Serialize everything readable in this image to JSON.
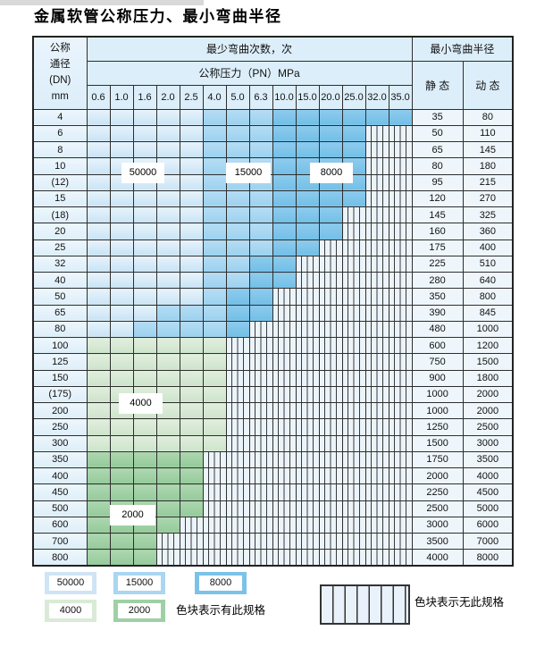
{
  "title": "金属软管公称压力、最小弯曲半径",
  "table": {
    "corner": [
      "公称",
      "通径",
      "(DN)",
      "mm"
    ],
    "bend_header": "最少弯曲次数，次",
    "pressure_header": "公称压力（PN）MPa",
    "radius_header": "最小弯曲半径",
    "static_header": "静 态",
    "dynamic_header": "动 态",
    "pressure_columns": [
      "0.6",
      "1.0",
      "1.6",
      "2.0",
      "2.5",
      "4.0",
      "5.0",
      "6.3",
      "10.0",
      "15.0",
      "20.0",
      "25.0",
      "32.0",
      "35.0"
    ],
    "rows": [
      {
        "dn": "4",
        "static": "35",
        "dynamic": "80",
        "cells": [
          "b1",
          "b1",
          "b1",
          "b1",
          "b1",
          "b2",
          "b2",
          "b2",
          "b3",
          "b3",
          "b3",
          "b3",
          "b3",
          "b3"
        ]
      },
      {
        "dn": "6",
        "static": "50",
        "dynamic": "110",
        "cells": [
          "b1",
          "b1",
          "b1",
          "b1",
          "b1",
          "b2",
          "b2",
          "b2",
          "b3",
          "b3",
          "b3",
          "b3",
          "x",
          "x"
        ]
      },
      {
        "dn": "8",
        "static": "65",
        "dynamic": "145",
        "cells": [
          "b1",
          "b1",
          "b1",
          "b1",
          "b1",
          "b2",
          "b2",
          "b2",
          "b3",
          "b3",
          "b3",
          "b3",
          "x",
          "x"
        ]
      },
      {
        "dn": "10",
        "static": "80",
        "dynamic": "180",
        "cells": [
          "b1",
          "b1",
          "b1",
          "b1",
          "b1",
          "b2",
          "b2",
          "b2",
          "b3",
          "b3",
          "b3",
          "b3",
          "x",
          "x"
        ]
      },
      {
        "dn": "(12)",
        "static": "95",
        "dynamic": "215",
        "cells": [
          "b1",
          "b1",
          "b1",
          "b1",
          "b1",
          "b2",
          "b2",
          "b2",
          "b3",
          "b3",
          "b3",
          "b3",
          "x",
          "x"
        ]
      },
      {
        "dn": "15",
        "static": "120",
        "dynamic": "270",
        "cells": [
          "b1",
          "b1",
          "b1",
          "b1",
          "b1",
          "b2",
          "b2",
          "b2",
          "b3",
          "b3",
          "b3",
          "b3",
          "x",
          "x"
        ]
      },
      {
        "dn": "(18)",
        "static": "145",
        "dynamic": "325",
        "cells": [
          "b1",
          "b1",
          "b1",
          "b1",
          "b1",
          "b2",
          "b2",
          "b2",
          "b3",
          "b3",
          "b3",
          "x",
          "x",
          "x"
        ]
      },
      {
        "dn": "20",
        "static": "160",
        "dynamic": "360",
        "cells": [
          "b1",
          "b1",
          "b1",
          "b1",
          "b1",
          "b2",
          "b2",
          "b2",
          "b3",
          "b3",
          "b3",
          "x",
          "x",
          "x"
        ]
      },
      {
        "dn": "25",
        "static": "175",
        "dynamic": "400",
        "cells": [
          "b1",
          "b1",
          "b1",
          "b1",
          "b1",
          "b2",
          "b2",
          "b2",
          "b3",
          "b3",
          "x",
          "x",
          "x",
          "x"
        ]
      },
      {
        "dn": "32",
        "static": "225",
        "dynamic": "510",
        "cells": [
          "b1",
          "b1",
          "b1",
          "b1",
          "b1",
          "b2",
          "b2",
          "b3",
          "b3",
          "x",
          "x",
          "x",
          "x",
          "x"
        ]
      },
      {
        "dn": "40",
        "static": "280",
        "dynamic": "640",
        "cells": [
          "b1",
          "b1",
          "b1",
          "b1",
          "b1",
          "b2",
          "b2",
          "b3",
          "b3",
          "x",
          "x",
          "x",
          "x",
          "x"
        ]
      },
      {
        "dn": "50",
        "static": "350",
        "dynamic": "800",
        "cells": [
          "b1",
          "b1",
          "b1",
          "b1",
          "b1",
          "b2",
          "b3",
          "b3",
          "x",
          "x",
          "x",
          "x",
          "x",
          "x"
        ]
      },
      {
        "dn": "65",
        "static": "390",
        "dynamic": "845",
        "cells": [
          "b1",
          "b1",
          "b1",
          "b2",
          "b2",
          "b2",
          "b3",
          "b3",
          "x",
          "x",
          "x",
          "x",
          "x",
          "x"
        ]
      },
      {
        "dn": "80",
        "static": "480",
        "dynamic": "1000",
        "cells": [
          "b1",
          "b1",
          "b2",
          "b2",
          "b2",
          "b2",
          "b3",
          "x",
          "x",
          "x",
          "x",
          "x",
          "x",
          "x"
        ]
      },
      {
        "dn": "100",
        "static": "600",
        "dynamic": "1200",
        "cells": [
          "g1",
          "g1",
          "g1",
          "g1",
          "g1",
          "g1",
          "x",
          "x",
          "x",
          "x",
          "x",
          "x",
          "x",
          "x"
        ]
      },
      {
        "dn": "125",
        "static": "750",
        "dynamic": "1500",
        "cells": [
          "g1",
          "g1",
          "g1",
          "g1",
          "g1",
          "g1",
          "x",
          "x",
          "x",
          "x",
          "x",
          "x",
          "x",
          "x"
        ]
      },
      {
        "dn": "150",
        "static": "900",
        "dynamic": "1800",
        "cells": [
          "g1",
          "g1",
          "g1",
          "g1",
          "g1",
          "g1",
          "x",
          "x",
          "x",
          "x",
          "x",
          "x",
          "x",
          "x"
        ]
      },
      {
        "dn": "(175)",
        "static": "1000",
        "dynamic": "2000",
        "cells": [
          "g1",
          "g1",
          "g1",
          "g1",
          "g1",
          "g1",
          "x",
          "x",
          "x",
          "x",
          "x",
          "x",
          "x",
          "x"
        ]
      },
      {
        "dn": "200",
        "static": "1000",
        "dynamic": "2000",
        "cells": [
          "g1",
          "g1",
          "g1",
          "g1",
          "g1",
          "g1",
          "x",
          "x",
          "x",
          "x",
          "x",
          "x",
          "x",
          "x"
        ]
      },
      {
        "dn": "250",
        "static": "1250",
        "dynamic": "2500",
        "cells": [
          "g1",
          "g1",
          "g1",
          "g1",
          "g1",
          "g1",
          "x",
          "x",
          "x",
          "x",
          "x",
          "x",
          "x",
          "x"
        ]
      },
      {
        "dn": "300",
        "static": "1500",
        "dynamic": "3000",
        "cells": [
          "g1",
          "g1",
          "g1",
          "g1",
          "g1",
          "g1",
          "x",
          "x",
          "x",
          "x",
          "x",
          "x",
          "x",
          "x"
        ]
      },
      {
        "dn": "350",
        "static": "1750",
        "dynamic": "3500",
        "cells": [
          "g2",
          "g2",
          "g2",
          "g2",
          "g2",
          "x",
          "x",
          "x",
          "x",
          "x",
          "x",
          "x",
          "x",
          "x"
        ]
      },
      {
        "dn": "400",
        "static": "2000",
        "dynamic": "4000",
        "cells": [
          "g2",
          "g2",
          "g2",
          "g2",
          "g2",
          "x",
          "x",
          "x",
          "x",
          "x",
          "x",
          "x",
          "x",
          "x"
        ]
      },
      {
        "dn": "450",
        "static": "2250",
        "dynamic": "4500",
        "cells": [
          "g2",
          "g2",
          "g2",
          "g2",
          "g2",
          "x",
          "x",
          "x",
          "x",
          "x",
          "x",
          "x",
          "x",
          "x"
        ]
      },
      {
        "dn": "500",
        "static": "2500",
        "dynamic": "5000",
        "cells": [
          "g2",
          "g2",
          "g2",
          "g2",
          "g2",
          "x",
          "x",
          "x",
          "x",
          "x",
          "x",
          "x",
          "x",
          "x"
        ]
      },
      {
        "dn": "600",
        "static": "3000",
        "dynamic": "6000",
        "cells": [
          "g2",
          "g2",
          "g2",
          "g2",
          "x",
          "x",
          "x",
          "x",
          "x",
          "x",
          "x",
          "x",
          "x",
          "x"
        ]
      },
      {
        "dn": "700",
        "static": "3500",
        "dynamic": "7000",
        "cells": [
          "g2",
          "g2",
          "g2",
          "x",
          "x",
          "x",
          "x",
          "x",
          "x",
          "x",
          "x",
          "x",
          "x",
          "x"
        ]
      },
      {
        "dn": "800",
        "static": "4000",
        "dynamic": "8000",
        "cells": [
          "g2",
          "g2",
          "g2",
          "x",
          "x",
          "x",
          "x",
          "x",
          "x",
          "x",
          "x",
          "x",
          "x",
          "x"
        ]
      }
    ]
  },
  "overlays": [
    "50000",
    "15000",
    "8000",
    "4000",
    "2000"
  ],
  "legend": {
    "has_spec": [
      {
        "value": "50000",
        "type": "b1",
        "color": "#cfe4f5"
      },
      {
        "value": "15000",
        "type": "b2",
        "color": "#a9d6f0"
      },
      {
        "value": "8000",
        "type": "b3",
        "color": "#7cc2e8"
      },
      {
        "value": "4000",
        "type": "g1",
        "color": "#d9ebd6"
      },
      {
        "value": "2000",
        "type": "g2",
        "color": "#9fd0a5"
      }
    ],
    "has_spec_text": "色块表示有此规格",
    "no_spec_text": "色块表示无此规格"
  },
  "colors": {
    "blue_light": "#cfe4f5",
    "blue_medium": "#a9d6f0",
    "blue_dark": "#7cc2e8",
    "green_light": "#d9ebd6",
    "green_dark": "#9fd0a5",
    "grid_line": "#2e2e2e",
    "header_bg": "#dceefa"
  }
}
